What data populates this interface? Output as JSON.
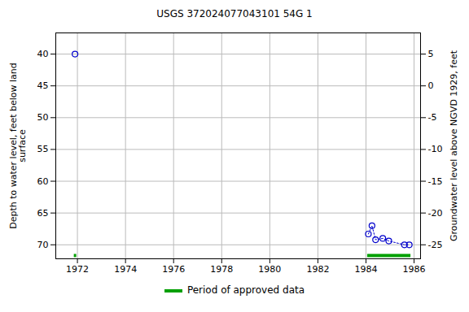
{
  "chart_data": {
    "type": "line",
    "title": "USGS 372024077043101 54G  1",
    "ylabel": "Depth to water level, feet below land\nsurface",
    "y2label": "Groundwater level above NGVD 1929, feet",
    "xlim": [
      1971.1,
      1986.27
    ],
    "xticks": [
      1972,
      1974,
      1976,
      1978,
      1980,
      1982,
      1984,
      1986
    ],
    "ylim": [
      36.67,
      72.2
    ],
    "yticks": [
      40,
      45,
      50,
      55,
      60,
      65,
      70
    ],
    "y2lim": [
      8.33,
      -27.2
    ],
    "y2ticks": [
      5,
      0,
      -5,
      -10,
      -15,
      -20,
      -25
    ],
    "grid": true,
    "legend": "bottom",
    "series": [
      {
        "color": "#0000cc",
        "marker": "circle",
        "line_style": "dotted",
        "x": [
          1971.9
        ],
        "values": [
          40.0
        ]
      },
      {
        "color": "#0000cc",
        "marker": "circle",
        "line_style": "dotted",
        "x": [
          1984.1,
          1984.25,
          1984.4,
          1984.7,
          1984.95,
          1985.6,
          1985.8
        ],
        "values": [
          68.3,
          67.0,
          69.2,
          69.0,
          69.4,
          70.0,
          70.0
        ]
      }
    ],
    "approved_periods": {
      "name": "Period of approved data",
      "color": "#00a000",
      "ranges": [
        [
          1971.85,
          1971.95
        ],
        [
          1984.05,
          1985.85
        ]
      ]
    }
  }
}
